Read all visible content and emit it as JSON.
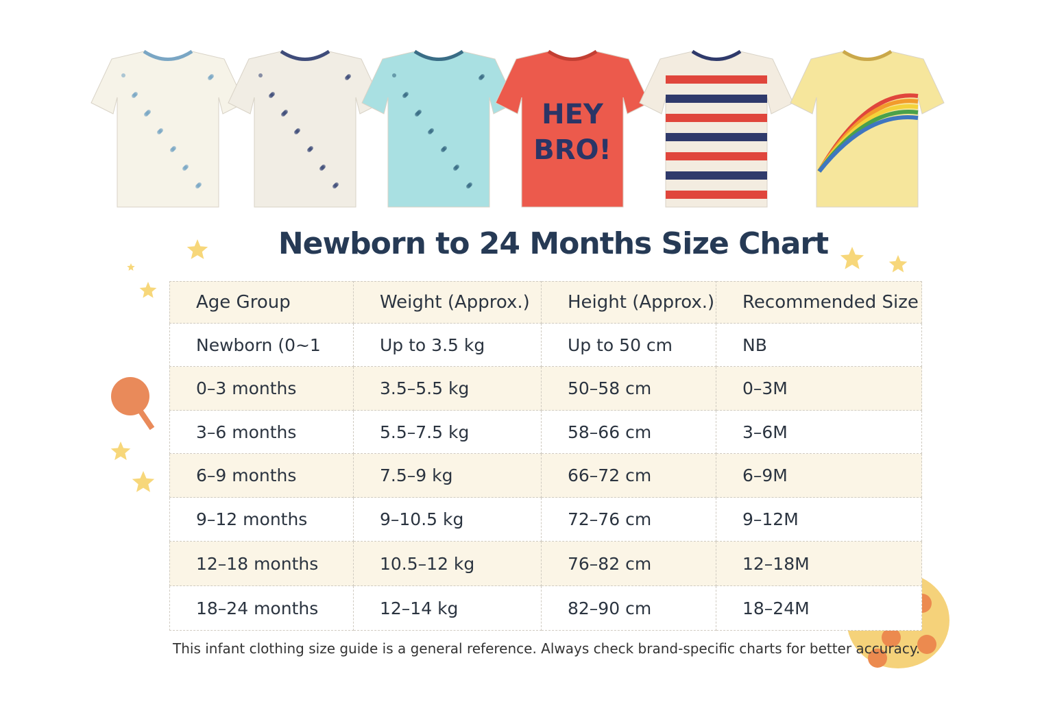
{
  "header": {
    "title": "Newborn to 24 Months Size Chart"
  },
  "shirt_print": [
    "HEY",
    "BRO!"
  ],
  "table": {
    "columns": [
      "Age Group",
      "Weight (Approx.)",
      "Height (Approx.)",
      "Recommended Size"
    ],
    "rows": [
      [
        "Newborn (0~1",
        "Up to 3.5 kg",
        "Up to 50 cm",
        "NB"
      ],
      [
        "0–3 months",
        "3.5–5.5 kg",
        "50–58 cm",
        "0–3M"
      ],
      [
        "3–6 months",
        "5.5–7.5 kg",
        "58–66 cm",
        "3–6M"
      ],
      [
        "6–9 months",
        "7.5–9 kg",
        "66–72 cm",
        "6–9M"
      ],
      [
        "9–12 months",
        "9–10.5 kg",
        "72–76 cm",
        "9–12M"
      ],
      [
        "12–18 months",
        "10.5–12 kg",
        "76–82 cm",
        "12–18M"
      ],
      [
        "18–24 months",
        "12–14 kg",
        "82–90 cm",
        "18–24M"
      ]
    ]
  },
  "footnote": "This infant clothing size guide is a general reference. Always check brand-specific charts for better accuracy."
}
